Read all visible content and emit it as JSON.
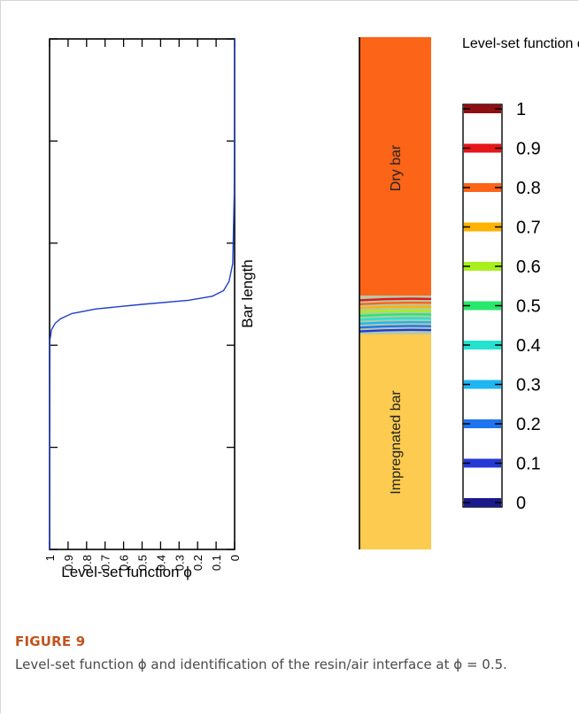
{
  "figure": {
    "label": "FIGURE 9",
    "caption": "Level-set function ϕ and identification of the resin/air interface at ϕ = 0.5."
  },
  "chart_data": [
    {
      "type": "line",
      "xlabel": "Level-set function ϕ",
      "ylabel": "Bar length",
      "x_ticks": [
        1,
        0.9,
        0.8,
        0.7,
        0.6,
        0.5,
        0.4,
        0.3,
        0.2,
        0.1,
        0
      ],
      "x_tick_labels": [
        "1",
        "0.9",
        "0.8",
        "0.7",
        "0.6",
        "0.5",
        "0.4",
        "0.3",
        "0.2",
        "0.1",
        "0"
      ],
      "xlim": [
        1,
        0
      ],
      "ylim": [
        0,
        1
      ],
      "y_ticks": [
        0,
        0.2,
        0.4,
        0.6,
        0.8,
        1
      ],
      "y_tick_labels_shown": false,
      "series": [
        {
          "color": "#1f3fc9",
          "x": [
            0.0,
            0.002,
            0.01,
            0.03,
            0.06,
            0.12,
            0.25,
            0.5,
            0.75,
            0.88,
            0.94,
            0.97,
            0.99,
            0.998,
            1.0
          ],
          "y": [
            1.0,
            0.7,
            0.56,
            0.525,
            0.507,
            0.496,
            0.488,
            0.48,
            0.471,
            0.462,
            0.452,
            0.443,
            0.43,
            0.41,
            0.0
          ]
        }
      ],
      "grid": false
    },
    {
      "type": "heatmap",
      "regions": [
        {
          "label": "Dry bar",
          "color": "#fc6417"
        },
        {
          "label": "Impregnated bar",
          "color": "#fdcb4f"
        }
      ],
      "interface_contours_phi": [
        0.1,
        0.2,
        0.3,
        0.4,
        0.5,
        0.6,
        0.7,
        0.8,
        0.9
      ],
      "colorbar": {
        "title": "Level-set function ϕ",
        "ticks": [
          0,
          0.1,
          0.2,
          0.3,
          0.4,
          0.5,
          0.6,
          0.7,
          0.8,
          0.9,
          1
        ],
        "tick_labels": [
          "0",
          "0.1",
          "0.2",
          "0.3",
          "0.4",
          "0.5",
          "0.6",
          "0.7",
          "0.8",
          "0.9",
          "1"
        ],
        "colors": [
          "#1a1a8c",
          "#2439d6",
          "#1f74f0",
          "#1fb6f2",
          "#22e3cf",
          "#27e86c",
          "#a8f01c",
          "#ffb200",
          "#ff6418",
          "#e5151a",
          "#8e0f11"
        ]
      }
    }
  ]
}
